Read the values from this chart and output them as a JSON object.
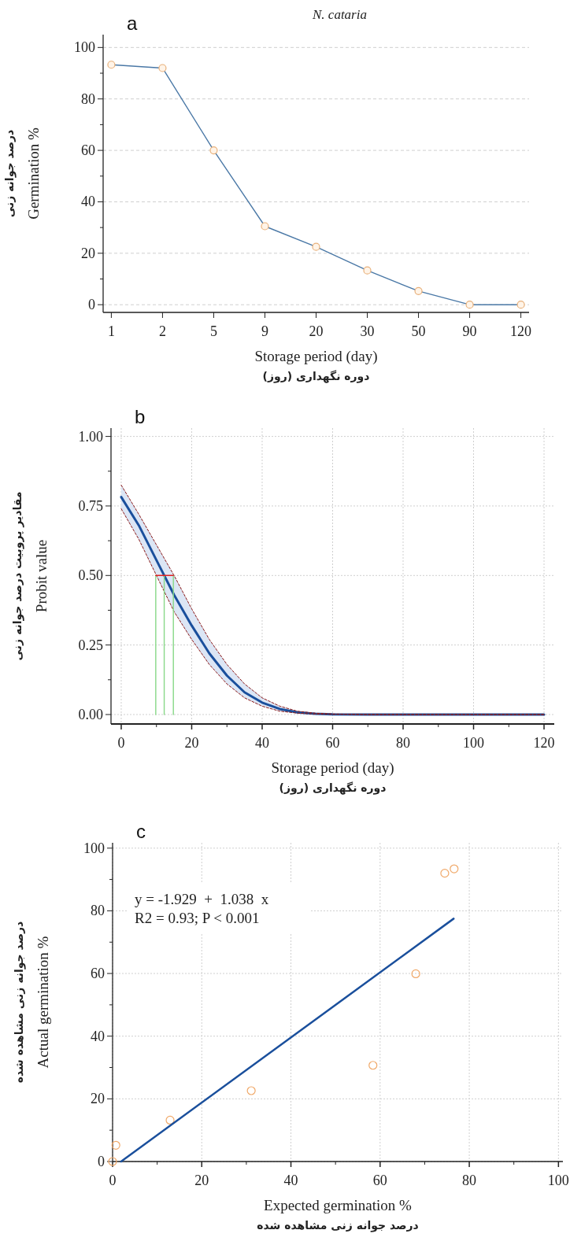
{
  "chart_data": [
    {
      "type": "line",
      "title": "N. cataria",
      "categories": [
        "1",
        "2",
        "5",
        "9",
        "20",
        "30",
        "50",
        "90",
        "120"
      ],
      "series": [
        {
          "color": "#4a78a6",
          "values": [
            93.3,
            92,
            60,
            30.5,
            22.5,
            13.3,
            5.3,
            0,
            0
          ]
        }
      ],
      "marker": "circle",
      "ylim": [
        -3,
        105
      ],
      "yticks": [
        0,
        {
          "value": 10,
          "label": null
        },
        20,
        {
          "value": 30,
          "label": null
        },
        40,
        {
          "value": 50,
          "label": null
        },
        60,
        {
          "value": 70,
          "label": null
        },
        80,
        {
          "value": 90,
          "label": null
        },
        100
      ],
      "grid": "y",
      "xlabel": "Storage period (day)\nدوره نگهداری (روز)",
      "ylabel": "درصد جوانه زنی\nGermination %",
      "annotations": [
        "a"
      ]
    },
    {
      "type": "line",
      "x": [
        0,
        5,
        10,
        15,
        20,
        25,
        30,
        35,
        40,
        45,
        50,
        55,
        60,
        70,
        80,
        90,
        100,
        110,
        120
      ],
      "series": [
        {
          "color": "#1a4f9c",
          "values": [
            0.782,
            0.68,
            0.555,
            0.43,
            0.32,
            0.22,
            0.14,
            0.08,
            0.043,
            0.02,
            0.008,
            0.003,
            0.001,
            0,
            0,
            0,
            0,
            0,
            0
          ],
          "lower": [
            0.74,
            0.63,
            0.5,
            0.37,
            0.27,
            0.18,
            0.11,
            0.06,
            0.03,
            0.012,
            0.005,
            0.002,
            0.001,
            0,
            0,
            0,
            0,
            0,
            0
          ],
          "upper": [
            0.825,
            0.72,
            0.61,
            0.5,
            0.38,
            0.27,
            0.18,
            0.11,
            0.06,
            0.03,
            0.012,
            0.005,
            0.002,
            0,
            0,
            0,
            0,
            0,
            0
          ]
        },
        {
          "color": "#8b1a1a",
          "line_style": "dashed",
          "values": [
            0.74,
            0.63,
            0.5,
            0.37,
            0.27,
            0.18,
            0.11,
            0.06,
            0.03,
            0.012,
            0.005,
            0.002,
            0.001,
            0,
            0,
            0,
            0,
            0,
            0
          ]
        },
        {
          "color": "#8b1a1a",
          "line_style": "dashed",
          "values": [
            0.825,
            0.72,
            0.61,
            0.5,
            0.38,
            0.27,
            0.18,
            0.11,
            0.06,
            0.03,
            0.012,
            0.005,
            0.002,
            0,
            0,
            0,
            0,
            0,
            0
          ]
        },
        {
          "color": "#88d888",
          "x": [
            9.8,
            9.8
          ],
          "values": [
            0,
            0.5
          ]
        },
        {
          "color": "#88d888",
          "x": [
            12.2,
            12.2
          ],
          "values": [
            0,
            0.5
          ]
        },
        {
          "color": "#88d888",
          "x": [
            14.8,
            14.8
          ],
          "values": [
            0,
            0.5
          ]
        },
        {
          "color": "#e02020",
          "x": [
            9.8,
            14.8
          ],
          "values": [
            0.5,
            0.5
          ]
        }
      ],
      "xlim": [
        -2.9,
        122.9
      ],
      "xticks": [
        0,
        {
          "value": 10,
          "label": null
        },
        20,
        {
          "value": 30,
          "label": null
        },
        40,
        {
          "value": 50,
          "label": null
        },
        60,
        {
          "value": 70,
          "label": null
        },
        80,
        {
          "value": 90,
          "label": null
        },
        100,
        {
          "value": 110,
          "label": null
        },
        120
      ],
      "ylim": [
        -0.034,
        1.03
      ],
      "yticks": [
        {
          "value": 0,
          "label": "0.00"
        },
        {
          "value": 0.125,
          "label": null
        },
        {
          "value": 0.25,
          "label": "0.25"
        },
        {
          "value": 0.375,
          "label": null
        },
        {
          "value": 0.5,
          "label": "0.50"
        },
        {
          "value": 0.625,
          "label": null
        },
        {
          "value": 0.75,
          "label": "0.75"
        },
        {
          "value": 0.875,
          "label": null
        },
        {
          "value": 1,
          "label": "1.00"
        }
      ],
      "grid": true,
      "xlabel": "Storage period (day)\nدوره نگهداری (روز)",
      "ylabel": "مقادیر پروبیت درصد جوانه زنی\nProbit value",
      "annotations": [
        "b"
      ]
    },
    {
      "type": "scatter",
      "series": [
        {
          "color": "#f0a868",
          "x": [
            0,
            0.74,
            12.9,
            31.1,
            58.4,
            68.0,
            74.5,
            76.6
          ],
          "values": [
            0,
            5.2,
            13.2,
            22.6,
            30.7,
            59.9,
            92.0,
            93.4
          ]
        },
        {
          "type": "line",
          "marker": "none",
          "color": "#1a4f9c",
          "x": [
            1.9,
            76.5
          ],
          "values": [
            0,
            77.5
          ]
        }
      ],
      "marker": "circle",
      "xlim": [
        0,
        101
      ],
      "xticks": [
        0,
        {
          "value": 10,
          "label": null
        },
        20,
        {
          "value": 30,
          "label": null
        },
        40,
        {
          "value": 50,
          "label": null
        },
        60,
        {
          "value": 70,
          "label": null
        },
        80,
        {
          "value": 90,
          "label": null
        },
        100
      ],
      "ylim": [
        0,
        101.7
      ],
      "yticks": [
        0,
        {
          "value": 10,
          "label": null
        },
        20,
        {
          "value": 30,
          "label": null
        },
        40,
        {
          "value": 50,
          "label": null
        },
        60,
        {
          "value": 70,
          "label": null
        },
        80,
        {
          "value": 90,
          "label": null
        },
        100
      ],
      "grid": true,
      "xlabel": "Expected germination %\nدرصد جوانه زنی مشاهده شده",
      "ylabel": "درصد جوانه زنی مشاهده شده\nActual germination %",
      "annotations": [
        "c",
        "y = -1.929  +  1.038  x",
        "R2 = 0.93; P < 0.001"
      ]
    }
  ]
}
